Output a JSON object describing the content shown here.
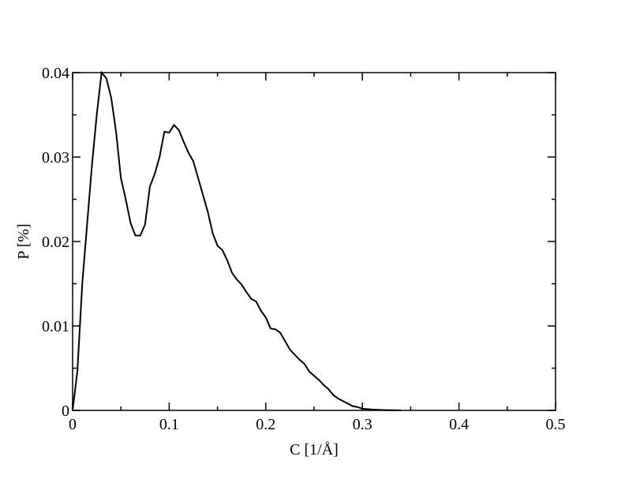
{
  "chart_data": {
    "type": "line",
    "x_label": "C [1/Å]",
    "y_label": "P [%]",
    "xlim": [
      0,
      0.5
    ],
    "ylim": [
      0,
      0.04
    ],
    "xticks": [
      0,
      0.1,
      0.2,
      0.3,
      0.4,
      0.5
    ],
    "yticks": [
      0,
      0.01,
      0.02,
      0.03,
      0.04
    ],
    "minor_xticks": [
      0.05,
      0.15,
      0.25,
      0.35,
      0.45
    ],
    "minor_yticks": [
      0.005,
      0.015,
      0.025,
      0.035
    ],
    "mirror_ticks": true,
    "x": [
      0,
      0.005,
      0.01,
      0.015,
      0.02,
      0.025,
      0.03,
      0.035,
      0.04,
      0.045,
      0.05,
      0.055,
      0.06,
      0.065,
      0.07,
      0.075,
      0.08,
      0.085,
      0.09,
      0.095,
      0.1,
      0.105,
      0.11,
      0.115,
      0.12,
      0.125,
      0.13,
      0.135,
      0.14,
      0.145,
      0.15,
      0.155,
      0.16,
      0.165,
      0.17,
      0.175,
      0.18,
      0.185,
      0.19,
      0.195,
      0.2,
      0.205,
      0.21,
      0.215,
      0.22,
      0.225,
      0.23,
      0.235,
      0.24,
      0.245,
      0.25,
      0.255,
      0.26,
      0.265,
      0.27,
      0.275,
      0.28,
      0.285,
      0.29,
      0.295,
      0.3,
      0.31,
      0.32,
      0.33,
      0.34
    ],
    "series": [
      {
        "color": "#000000",
        "values": [
          0,
          0.0047,
          0.015,
          0.022,
          0.029,
          0.035,
          0.04,
          0.0393,
          0.037,
          0.033,
          0.0275,
          0.025,
          0.0222,
          0.0207,
          0.0207,
          0.022,
          0.0265,
          0.028,
          0.03,
          0.033,
          0.0329,
          0.0338,
          0.0332,
          0.0318,
          0.0305,
          0.0295,
          0.0275,
          0.0255,
          0.0235,
          0.021,
          0.0195,
          0.019,
          0.0178,
          0.0163,
          0.0155,
          0.0149,
          0.014,
          0.0132,
          0.0129,
          0.0118,
          0.011,
          0.0097,
          0.0096,
          0.0092,
          0.0082,
          0.0072,
          0.0066,
          0.006,
          0.0055,
          0.0046,
          0.0041,
          0.0036,
          0.003,
          0.0025,
          0.0018,
          0.0014,
          0.0011,
          0.0008,
          0.0005,
          0.0004,
          0.0002,
          0.0001,
          5e-05,
          2e-05,
          0
        ]
      }
    ]
  }
}
